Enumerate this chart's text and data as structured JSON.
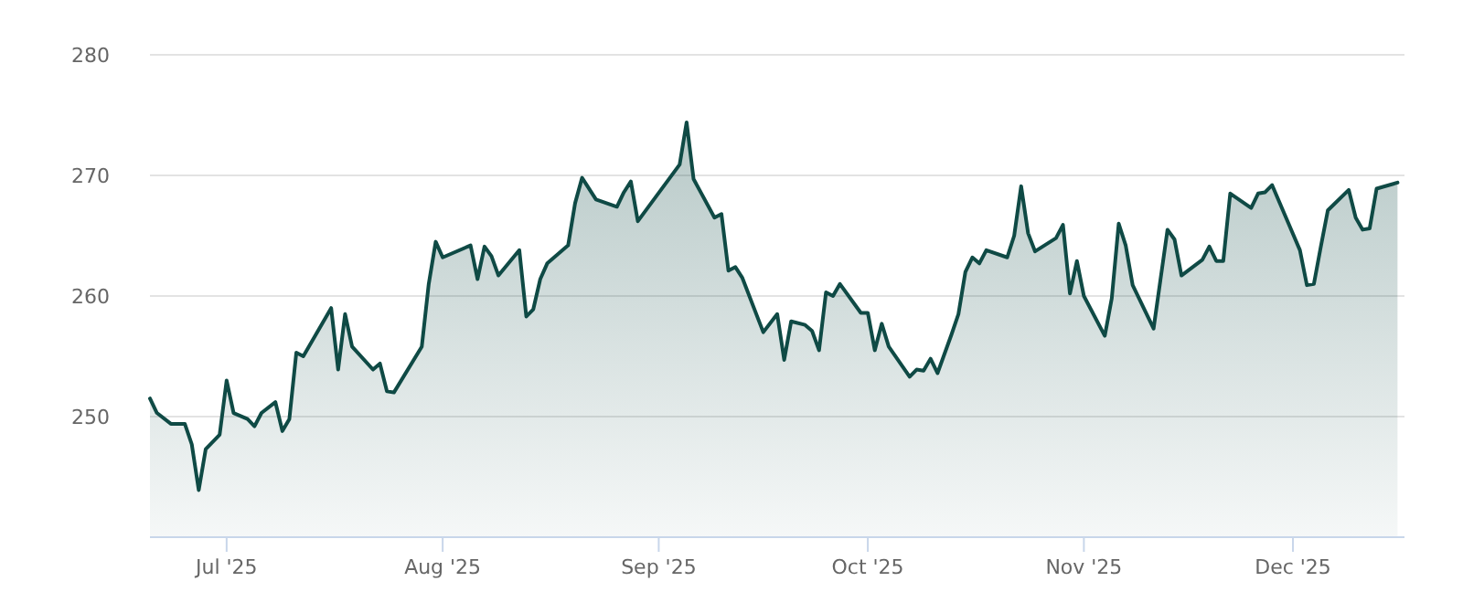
{
  "chart_data": {
    "type": "area",
    "xlim": [
      "2025-06-20",
      "2025-12-17"
    ],
    "ylim": [
      240,
      280
    ],
    "yticks": [
      250,
      260,
      270,
      280
    ],
    "grid": "y",
    "xticks": [
      {
        "value": "2025-07-01",
        "label": "Jul '25"
      },
      {
        "value": "2025-08-01",
        "label": "Aug '25"
      },
      {
        "value": "2025-09-01",
        "label": "Sep '25"
      },
      {
        "value": "2025-10-01",
        "label": "Oct '25"
      },
      {
        "value": "2025-11-01",
        "label": "Nov '25"
      },
      {
        "value": "2025-12-01",
        "label": "Dec '25"
      }
    ],
    "x": [
      "2025-06-20",
      "2025-06-21",
      "2025-06-23",
      "2025-06-25",
      "2025-06-26",
      "2025-06-27",
      "2025-06-28",
      "2025-06-30",
      "2025-07-01",
      "2025-07-02",
      "2025-07-04",
      "2025-07-05",
      "2025-07-06",
      "2025-07-08",
      "2025-07-09",
      "2025-07-10",
      "2025-07-11",
      "2025-07-12",
      "2025-07-16",
      "2025-07-17",
      "2025-07-18",
      "2025-07-19",
      "2025-07-22",
      "2025-07-23",
      "2025-07-24",
      "2025-07-25",
      "2025-07-29",
      "2025-07-30",
      "2025-07-31",
      "2025-08-01",
      "2025-08-05",
      "2025-08-06",
      "2025-08-07",
      "2025-08-08",
      "2025-08-09",
      "2025-08-12",
      "2025-08-13",
      "2025-08-14",
      "2025-08-15",
      "2025-08-16",
      "2025-08-19",
      "2025-08-20",
      "2025-08-21",
      "2025-08-23",
      "2025-08-26",
      "2025-08-27",
      "2025-08-28",
      "2025-08-29",
      "2025-09-04",
      "2025-09-05",
      "2025-09-06",
      "2025-09-09",
      "2025-09-10",
      "2025-09-11",
      "2025-09-12",
      "2025-09-13",
      "2025-09-16",
      "2025-09-18",
      "2025-09-19",
      "2025-09-20",
      "2025-09-22",
      "2025-09-23",
      "2025-09-24",
      "2025-09-25",
      "2025-09-26",
      "2025-09-27",
      "2025-09-30",
      "2025-10-01",
      "2025-10-02",
      "2025-10-03",
      "2025-10-04",
      "2025-10-07",
      "2025-10-08",
      "2025-10-09",
      "2025-10-10",
      "2025-10-11",
      "2025-10-13",
      "2025-10-14",
      "2025-10-15",
      "2025-10-16",
      "2025-10-17",
      "2025-10-18",
      "2025-10-21",
      "2025-10-22",
      "2025-10-23",
      "2025-10-24",
      "2025-10-25",
      "2025-10-28",
      "2025-10-29",
      "2025-10-30",
      "2025-10-31",
      "2025-11-01",
      "2025-11-04",
      "2025-11-05",
      "2025-11-06",
      "2025-11-07",
      "2025-11-08",
      "2025-11-11",
      "2025-11-13",
      "2025-11-14",
      "2025-11-15",
      "2025-11-18",
      "2025-11-19",
      "2025-11-20",
      "2025-11-21",
      "2025-11-22",
      "2025-11-25",
      "2025-11-26",
      "2025-11-27",
      "2025-11-28",
      "2025-12-02",
      "2025-12-03",
      "2025-12-04",
      "2025-12-05",
      "2025-12-06",
      "2025-12-09",
      "2025-12-10",
      "2025-12-11",
      "2025-12-12",
      "2025-12-13",
      "2025-12-16"
    ],
    "series": [
      {
        "color": "#0f4a45",
        "values": [
          251.5,
          250.3,
          249.4,
          249.4,
          247.7,
          243.9,
          247.3,
          248.5,
          253,
          250.3,
          249.8,
          249.2,
          250.3,
          251.2,
          248.8,
          249.8,
          255.3,
          255,
          259,
          253.9,
          258.5,
          255.8,
          253.9,
          254.4,
          252.1,
          252,
          255.8,
          261,
          264.5,
          263.2,
          264.2,
          261.4,
          264.1,
          263.3,
          261.7,
          263.8,
          258.3,
          258.9,
          261.4,
          262.7,
          264.2,
          267.7,
          269.8,
          268,
          267.4,
          268.6,
          269.5,
          266.2,
          270.9,
          274.4,
          269.7,
          266.5,
          266.8,
          262.1,
          262.4,
          261.5,
          257,
          258.5,
          254.7,
          257.9,
          257.6,
          257.1,
          255.5,
          260.3,
          260,
          261,
          258.6,
          258.6,
          255.5,
          257.7,
          255.8,
          253.3,
          253.9,
          253.8,
          254.8,
          253.6,
          256.8,
          258.5,
          262,
          263.2,
          262.7,
          263.8,
          263.2,
          265,
          269.1,
          265.2,
          263.7,
          264.8,
          265.9,
          260.2,
          262.9,
          260,
          256.7,
          259.8,
          266,
          264.2,
          260.9,
          257.3,
          265.5,
          264.7,
          261.7,
          263,
          264.1,
          262.9,
          262.9,
          268.5,
          267.3,
          268.5,
          268.6,
          269.2,
          263.8,
          260.9,
          261,
          264.1,
          267.1,
          268.8,
          266.5,
          265.5,
          265.6,
          268.9,
          269.4
        ]
      }
    ]
  }
}
